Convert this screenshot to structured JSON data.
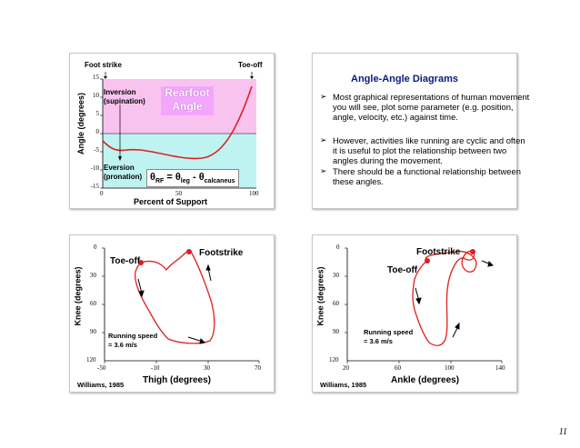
{
  "slide1": {
    "foot_strike": "Foot strike",
    "toe_off": "Toe-off",
    "y_axis_label": "Angle (degrees)",
    "y_ticks": [
      "15",
      "10",
      "5",
      "0",
      "-5",
      "-10",
      "-15"
    ],
    "x_ticks": [
      "0",
      "50",
      "100"
    ],
    "x_axis_label": "Percent of Support",
    "inversion_label": "Inversion\n(supination)",
    "eversion_label": "Eversion\n(pronation)",
    "title_box": "Rearfoot\nAngle",
    "formula": {
      "lhs": "θ",
      "lhs_sub": "RF",
      "eq": " = ",
      "t1": "θ",
      "t1_sub": "leg",
      "minus": " - ",
      "t2": "θ",
      "t2_sub": "calcaneus"
    },
    "colors": {
      "positive_band": "#f9c3f0",
      "negative_band": "#bff3f2",
      "curve": "#e02020",
      "title_box_bg": "#f4a6ff",
      "title_box_text": "#ffffff"
    }
  },
  "slide2": {
    "title": "Angle-Angle Diagrams",
    "bullets": [
      "Most graphical representations of human movement you will see, plot some parameter (e.g. position, angle, velocity, etc.) against time.",
      "However, activities like running are cyclic and often it is useful to plot the relationship between two angles during the movement.",
      "There should be a functional relationship between these angles."
    ],
    "title_color": "#0a1a80"
  },
  "slide3": {
    "y_axis_label": "Knee (degrees)",
    "x_axis_label": "Thigh (degrees)",
    "y_ticks": [
      "0",
      "30",
      "60",
      "90",
      "120"
    ],
    "x_ticks": [
      "-50",
      "-10",
      "30",
      "70"
    ],
    "toe_off": "Toe-off",
    "footstrike": "Footstrike",
    "speed_label": "Running speed\n= 3.6 m/s",
    "citation": "Williams, 1985"
  },
  "slide4": {
    "y_axis_label": "Knee (degrees)",
    "x_axis_label": "Ankle (degrees)",
    "y_ticks": [
      "0",
      "30",
      "60",
      "90",
      "120"
    ],
    "x_ticks": [
      "20",
      "60",
      "100",
      "140"
    ],
    "toe_off": "Toe-off",
    "footstrike": "Footstrike",
    "speed_label": "Running speed\n= 3.6 m/s",
    "citation": "Williams, 1985"
  },
  "page_number": "11"
}
